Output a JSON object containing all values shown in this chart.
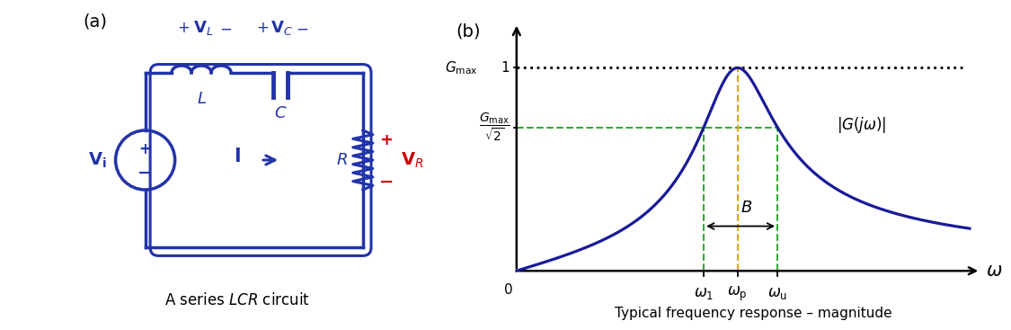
{
  "bg_color": "#ffffff",
  "circuit_color": "#2233aa",
  "red_color": "#cc0000",
  "curve_color": "#1a1a99",
  "green_color": "#33aa33",
  "orange_color": "#ddaa00",
  "black_color": "#000000",
  "label_a": "(a)",
  "label_b": "(b)",
  "caption_b": "Typical frequency response – magnitude",
  "omega0": 2.0,
  "Q": 3.0,
  "xlim_max": 4.2,
  "ylim_max": 1.22
}
